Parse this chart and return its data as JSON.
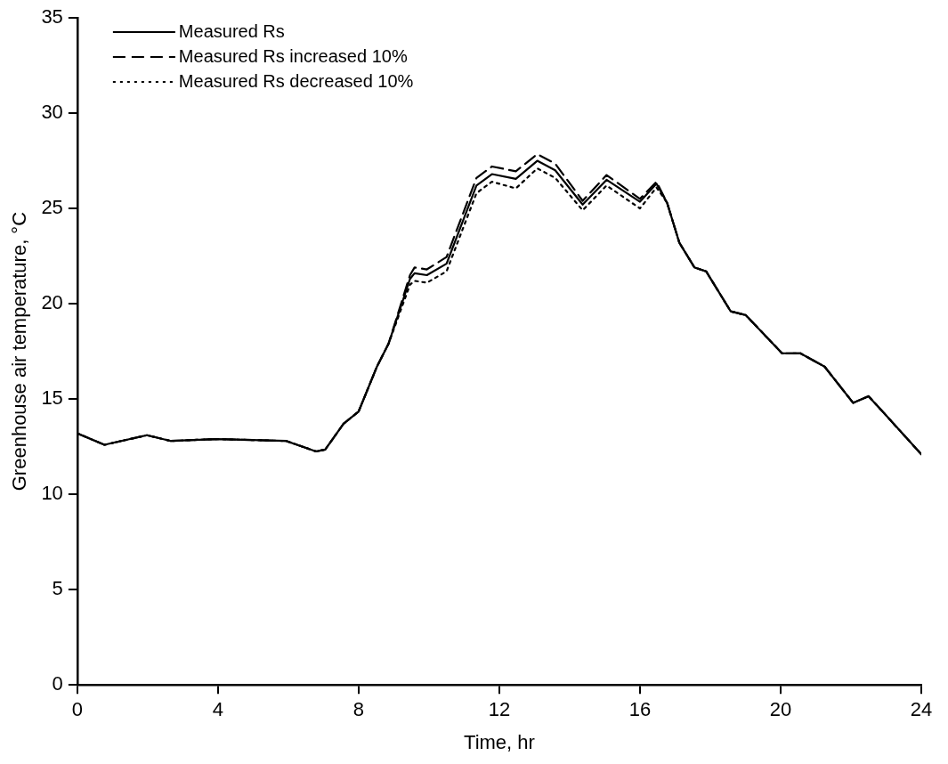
{
  "chart_data": {
    "type": "line",
    "xlabel": "Time, hr",
    "ylabel": "Greenhouse air temperature, °C",
    "xlim": [
      0,
      24
    ],
    "xticks": [
      0,
      4,
      8,
      12,
      16,
      20,
      24
    ],
    "ylim": [
      0,
      35
    ],
    "yticks": [
      0,
      5,
      10,
      15,
      20,
      25,
      30,
      35
    ],
    "grid": false,
    "legend": "top left",
    "marker": "none",
    "series": [
      {
        "name": "Measured Rs",
        "color": "#000000",
        "line_style": "solid",
        "x": [
          0,
          0.77,
          1.98,
          2.66,
          3.95,
          5.94,
          6.79,
          7.05,
          7.57,
          8.0,
          8.52,
          8.85,
          9.46,
          9.59,
          9.94,
          10.5,
          11.35,
          11.79,
          12.47,
          13.08,
          13.59,
          14.37,
          15.05,
          16.0,
          16.47,
          16.77,
          17.12,
          17.55,
          17.88,
          18.58,
          19.01,
          20.04,
          20.56,
          21.25,
          22.06,
          22.5,
          22.97,
          24.0
        ],
        "values": [
          13.2,
          12.6,
          13.1,
          12.8,
          12.9,
          12.8,
          12.25,
          12.35,
          13.7,
          14.35,
          16.7,
          17.9,
          21.3,
          21.6,
          21.5,
          22.1,
          26.2,
          26.8,
          26.55,
          27.5,
          27.0,
          25.2,
          26.5,
          25.35,
          26.3,
          25.3,
          23.2,
          21.9,
          21.7,
          19.6,
          19.4,
          17.4,
          17.4,
          16.7,
          14.8,
          15.15,
          14.2,
          12.1
        ]
      },
      {
        "name": "Measured Rs increased 10%",
        "color": "#000000",
        "line_style": "dashed",
        "x": [
          0,
          0.77,
          1.98,
          2.66,
          3.95,
          5.94,
          6.79,
          7.05,
          7.57,
          8.0,
          8.52,
          8.85,
          9.46,
          9.59,
          9.94,
          10.5,
          11.35,
          11.79,
          12.47,
          13.08,
          13.59,
          14.37,
          15.05,
          16.0,
          16.47,
          16.77,
          17.12,
          17.55,
          17.88,
          18.58,
          19.01,
          20.04,
          20.56,
          21.25,
          22.06,
          22.5,
          22.97,
          24.0
        ],
        "values": [
          13.2,
          12.6,
          13.1,
          12.8,
          12.9,
          12.8,
          12.25,
          12.35,
          13.7,
          14.35,
          16.7,
          17.9,
          21.5,
          21.9,
          21.8,
          22.45,
          26.6,
          27.2,
          26.95,
          27.85,
          27.35,
          25.4,
          26.75,
          25.5,
          26.4,
          25.3,
          23.2,
          21.9,
          21.7,
          19.6,
          19.4,
          17.4,
          17.4,
          16.7,
          14.8,
          15.15,
          14.2,
          12.1
        ]
      },
      {
        "name": "Measured Rs decreased 10%",
        "color": "#000000",
        "line_style": "dotted",
        "x": [
          0,
          0.77,
          1.98,
          2.66,
          3.95,
          5.94,
          6.79,
          7.05,
          7.57,
          8.0,
          8.52,
          8.85,
          9.46,
          9.59,
          9.94,
          10.5,
          11.35,
          11.79,
          12.47,
          13.08,
          13.59,
          14.37,
          15.05,
          16.0,
          16.47,
          16.77,
          17.12,
          17.55,
          17.88,
          18.58,
          19.01,
          20.04,
          20.56,
          21.25,
          22.06,
          22.5,
          22.97,
          24.0
        ],
        "values": [
          13.2,
          12.6,
          13.1,
          12.8,
          12.9,
          12.8,
          12.25,
          12.35,
          13.7,
          14.35,
          16.7,
          17.9,
          21.0,
          21.2,
          21.1,
          21.7,
          25.8,
          26.4,
          26.05,
          27.1,
          26.6,
          24.9,
          26.2,
          25.0,
          26.1,
          25.3,
          23.2,
          21.9,
          21.7,
          19.6,
          19.4,
          17.4,
          17.4,
          16.7,
          14.8,
          15.15,
          14.2,
          12.1
        ]
      }
    ]
  }
}
